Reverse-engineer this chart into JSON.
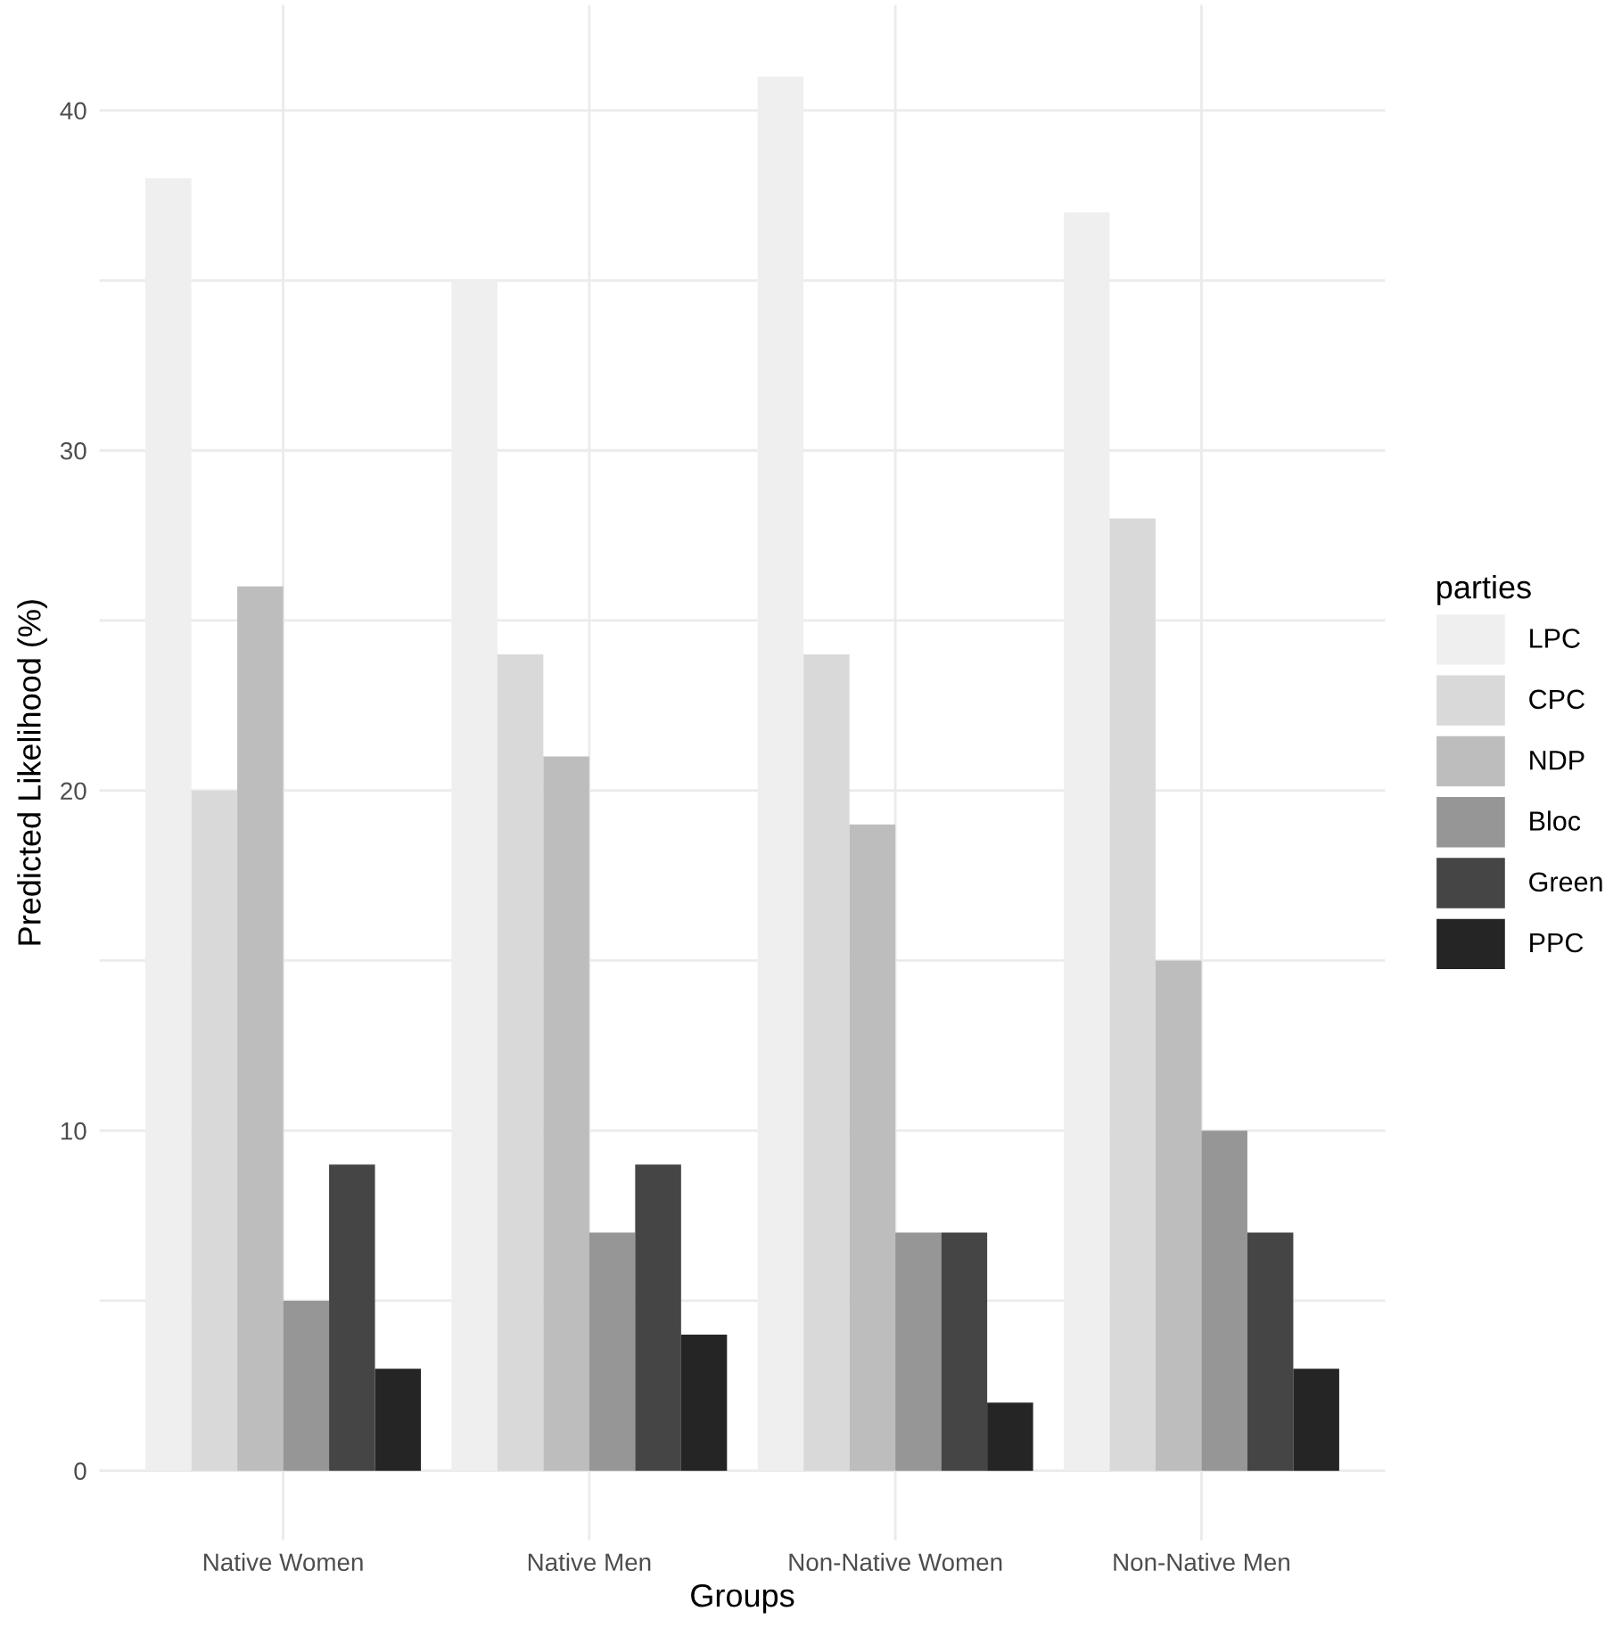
{
  "chart_data": {
    "type": "bar",
    "xlabel": "Groups",
    "ylabel": "Predicted Likelihood (%)",
    "legend_title": "parties",
    "legend": "right",
    "grid": true,
    "categories": [
      "Native Women",
      "Native Men",
      "Non-Native Women",
      "Non-Native Men"
    ],
    "ylim": [
      -2.05,
      43.1
    ],
    "yticks": [
      0,
      {
        "value": 5,
        "label": null
      },
      10,
      {
        "value": 15,
        "label": null
      },
      20,
      {
        "value": 25,
        "label": null
      },
      30,
      {
        "value": 35,
        "label": null
      },
      40
    ],
    "series": [
      {
        "name": "LPC",
        "color": "#efefef",
        "values": [
          38,
          35,
          41,
          37
        ]
      },
      {
        "name": "CPC",
        "color": "#d9d9d9",
        "values": [
          20,
          24,
          24,
          28
        ]
      },
      {
        "name": "NDP",
        "color": "#bdbdbd",
        "values": [
          26,
          21,
          19,
          15
        ]
      },
      {
        "name": "Bloc",
        "color": "#969696",
        "values": [
          5,
          7,
          7,
          10
        ]
      },
      {
        "name": "Green",
        "color": "#454545",
        "values": [
          9,
          9,
          7,
          7
        ]
      },
      {
        "name": "PPC",
        "color": "#252525",
        "values": [
          3,
          4,
          2,
          3
        ]
      }
    ]
  }
}
